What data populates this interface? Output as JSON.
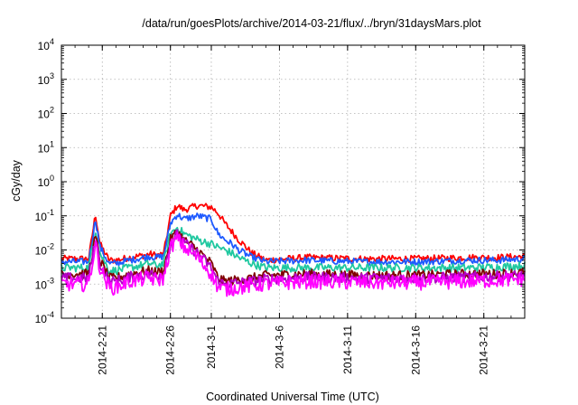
{
  "chart_data": {
    "type": "line",
    "title": "/data/run/goesPlots/archive/2014-03-21/flux/../bryn/31daysMars.plot",
    "xlabel": "Coordinated Universal Time (UTC)",
    "ylabel": "cGy/day",
    "yscale": "log",
    "ylim": [
      0.0001,
      10000
    ],
    "xlim": [
      "2014-02-18",
      "2014-03-24"
    ],
    "grid": true,
    "y_ticks": [
      {
        "value": 0.0001,
        "base": "10",
        "exp": "-4"
      },
      {
        "value": 0.001,
        "base": "10",
        "exp": "-3"
      },
      {
        "value": 0.01,
        "base": "10",
        "exp": "-2"
      },
      {
        "value": 0.1,
        "base": "10",
        "exp": "-1"
      },
      {
        "value": 1,
        "base": "10",
        "exp": "0"
      },
      {
        "value": 10,
        "base": "10",
        "exp": "1"
      },
      {
        "value": 100,
        "base": "10",
        "exp": "2"
      },
      {
        "value": 1000,
        "base": "10",
        "exp": "3"
      },
      {
        "value": 10000,
        "base": "10",
        "exp": "4"
      }
    ],
    "x_ticks": [
      {
        "date": "2014-02-21",
        "label": "2014-2-21"
      },
      {
        "date": "2014-02-26",
        "label": "2014-2-26"
      },
      {
        "date": "2014-03-01",
        "label": "2014-3-1"
      },
      {
        "date": "2014-03-06",
        "label": "2014-3-6"
      },
      {
        "date": "2014-03-11",
        "label": "2014-3-11"
      },
      {
        "date": "2014-03-16",
        "label": "2014-3-16"
      },
      {
        "date": "2014-03-21",
        "label": "2014-3-21"
      }
    ],
    "series": [
      {
        "color": "#ff0000",
        "noise": 0.1,
        "points": [
          [
            "2014-02-18",
            0.0055
          ],
          [
            "2014-02-20",
            0.0055
          ],
          [
            "2014-02-20T12:00",
            0.11
          ],
          [
            "2014-02-20T20:00",
            0.015
          ],
          [
            "2014-02-21T12:00",
            0.005
          ],
          [
            "2014-02-22",
            0.005
          ],
          [
            "2014-02-23",
            0.006
          ],
          [
            "2014-02-24T12:00",
            0.0075
          ],
          [
            "2014-02-25",
            0.007
          ],
          [
            "2014-02-25T12:00",
            0.0075
          ],
          [
            "2014-02-26",
            0.1
          ],
          [
            "2014-02-26T12:00",
            0.2
          ],
          [
            "2014-02-27",
            0.15
          ],
          [
            "2014-02-28",
            0.2
          ],
          [
            "2014-03-01",
            0.18
          ],
          [
            "2014-03-01T12:00",
            0.12
          ],
          [
            "2014-03-02",
            0.06
          ],
          [
            "2014-03-02T12:00",
            0.035
          ],
          [
            "2014-03-03",
            0.02
          ],
          [
            "2014-03-04",
            0.008
          ],
          [
            "2014-03-05",
            0.005
          ],
          [
            "2014-03-08",
            0.006
          ],
          [
            "2014-03-12",
            0.0055
          ],
          [
            "2014-03-16",
            0.0055
          ],
          [
            "2014-03-20",
            0.006
          ],
          [
            "2014-03-22",
            0.006
          ],
          [
            "2014-03-24",
            0.0065
          ]
        ]
      },
      {
        "color": "#1e5aff",
        "noise": 0.1,
        "points": [
          [
            "2014-02-18",
            0.0045
          ],
          [
            "2014-02-20",
            0.0045
          ],
          [
            "2014-02-20T12:00",
            0.08
          ],
          [
            "2014-02-20T20:00",
            0.012
          ],
          [
            "2014-02-21T12:00",
            0.004
          ],
          [
            "2014-02-22",
            0.004
          ],
          [
            "2014-02-23",
            0.005
          ],
          [
            "2014-02-24T12:00",
            0.0065
          ],
          [
            "2014-02-25",
            0.006
          ],
          [
            "2014-02-25T12:00",
            0.0065
          ],
          [
            "2014-02-26",
            0.06
          ],
          [
            "2014-02-26T12:00",
            0.11
          ],
          [
            "2014-02-27",
            0.08
          ],
          [
            "2014-02-28",
            0.1
          ],
          [
            "2014-03-01",
            0.08
          ],
          [
            "2014-03-01T12:00",
            0.03
          ],
          [
            "2014-03-02",
            0.02
          ],
          [
            "2014-03-02T12:00",
            0.015
          ],
          [
            "2014-03-03",
            0.01
          ],
          [
            "2014-03-04",
            0.006
          ],
          [
            "2014-03-05",
            0.0045
          ],
          [
            "2014-03-08",
            0.005
          ],
          [
            "2014-03-12",
            0.0045
          ],
          [
            "2014-03-16",
            0.0045
          ],
          [
            "2014-03-20",
            0.005
          ],
          [
            "2014-03-22",
            0.005
          ],
          [
            "2014-03-24",
            0.0055
          ]
        ]
      },
      {
        "color": "#20c8a0",
        "noise": 0.12,
        "points": [
          [
            "2014-02-18",
            0.003
          ],
          [
            "2014-02-20",
            0.003
          ],
          [
            "2014-02-20T12:00",
            0.04
          ],
          [
            "2014-02-20T20:00",
            0.008
          ],
          [
            "2014-02-21T12:00",
            0.0025
          ],
          [
            "2014-02-22",
            0.0025
          ],
          [
            "2014-02-23",
            0.003
          ],
          [
            "2014-02-24T12:00",
            0.004
          ],
          [
            "2014-02-25",
            0.0035
          ],
          [
            "2014-02-25T12:00",
            0.004
          ],
          [
            "2014-02-26",
            0.03
          ],
          [
            "2014-02-26T12:00",
            0.045
          ],
          [
            "2014-02-27",
            0.03
          ],
          [
            "2014-02-28",
            0.02
          ],
          [
            "2014-03-01",
            0.015
          ],
          [
            "2014-03-01T12:00",
            0.012
          ],
          [
            "2014-03-02",
            0.01
          ],
          [
            "2014-03-02T12:00",
            0.008
          ],
          [
            "2014-03-03",
            0.006
          ],
          [
            "2014-03-04",
            0.004
          ],
          [
            "2014-03-05",
            0.003
          ],
          [
            "2014-03-08",
            0.003
          ],
          [
            "2014-03-12",
            0.003
          ],
          [
            "2014-03-16",
            0.003
          ],
          [
            "2014-03-20",
            0.003
          ],
          [
            "2014-03-22",
            0.0032
          ],
          [
            "2014-03-24",
            0.0035
          ]
        ]
      },
      {
        "color": "#800000",
        "noise": 0.14,
        "points": [
          [
            "2014-02-18",
            0.002
          ],
          [
            "2014-02-20",
            0.002
          ],
          [
            "2014-02-20T12:00",
            0.025
          ],
          [
            "2014-02-20T20:00",
            0.005
          ],
          [
            "2014-02-21T12:00",
            0.0015
          ],
          [
            "2014-02-22",
            0.0015
          ],
          [
            "2014-02-23",
            0.002
          ],
          [
            "2014-02-24T12:00",
            0.0025
          ],
          [
            "2014-02-25",
            0.0022
          ],
          [
            "2014-02-25T12:00",
            0.0025
          ],
          [
            "2014-02-26",
            0.02
          ],
          [
            "2014-02-26T12:00",
            0.035
          ],
          [
            "2014-02-27",
            0.02
          ],
          [
            "2014-02-28",
            0.01
          ],
          [
            "2014-03-01",
            0.004
          ],
          [
            "2014-03-01T12:00",
            0.0015
          ],
          [
            "2014-03-02",
            0.0012
          ],
          [
            "2014-03-04",
            0.0015
          ],
          [
            "2014-03-05",
            0.0018
          ],
          [
            "2014-03-08",
            0.002
          ],
          [
            "2014-03-12",
            0.0018
          ],
          [
            "2014-03-16",
            0.0018
          ],
          [
            "2014-03-20",
            0.002
          ],
          [
            "2014-03-22",
            0.002
          ],
          [
            "2014-03-24",
            0.0022
          ]
        ]
      },
      {
        "color": "#b400c8",
        "noise": 0.16,
        "points": [
          [
            "2014-02-18",
            0.0015
          ],
          [
            "2014-02-20",
            0.0015
          ],
          [
            "2014-02-20T12:00",
            0.02
          ],
          [
            "2014-02-20T20:00",
            0.004
          ],
          [
            "2014-02-21T12:00",
            0.0012
          ],
          [
            "2014-02-22",
            0.0012
          ],
          [
            "2014-02-23",
            0.0016
          ],
          [
            "2014-02-24T12:00",
            0.002
          ],
          [
            "2014-02-25",
            0.0018
          ],
          [
            "2014-02-25T12:00",
            0.002
          ],
          [
            "2014-02-26",
            0.015
          ],
          [
            "2014-02-26T12:00",
            0.028
          ],
          [
            "2014-02-27",
            0.016
          ],
          [
            "2014-02-28",
            0.008
          ],
          [
            "2014-03-01",
            0.003
          ],
          [
            "2014-03-01T12:00",
            0.0012
          ],
          [
            "2014-03-02",
            0.001
          ],
          [
            "2014-03-04",
            0.0012
          ],
          [
            "2014-03-05",
            0.0014
          ],
          [
            "2014-03-08",
            0.0016
          ],
          [
            "2014-03-12",
            0.0015
          ],
          [
            "2014-03-16",
            0.0015
          ],
          [
            "2014-03-20",
            0.0016
          ],
          [
            "2014-03-22",
            0.0017
          ],
          [
            "2014-03-24",
            0.0018
          ]
        ]
      },
      {
        "color": "#ff00ff",
        "noise": 0.22,
        "points": [
          [
            "2014-02-18",
            0.001
          ],
          [
            "2014-02-20",
            0.001
          ],
          [
            "2014-02-20T12:00",
            0.015
          ],
          [
            "2014-02-20T20:00",
            0.003
          ],
          [
            "2014-02-21T12:00",
            0.0008
          ],
          [
            "2014-02-22",
            0.0008
          ],
          [
            "2014-02-23",
            0.0012
          ],
          [
            "2014-02-24T12:00",
            0.0015
          ],
          [
            "2014-02-25",
            0.0013
          ],
          [
            "2014-02-25T12:00",
            0.0015
          ],
          [
            "2014-02-26",
            0.012
          ],
          [
            "2014-02-26T12:00",
            0.022
          ],
          [
            "2014-02-27",
            0.012
          ],
          [
            "2014-02-28",
            0.006
          ],
          [
            "2014-03-01",
            0.002
          ],
          [
            "2014-03-01T12:00",
            0.0008
          ],
          [
            "2014-03-02",
            0.0007
          ],
          [
            "2014-03-04",
            0.0009
          ],
          [
            "2014-03-05",
            0.001
          ],
          [
            "2014-03-08",
            0.0012
          ],
          [
            "2014-03-12",
            0.0011
          ],
          [
            "2014-03-16",
            0.0011
          ],
          [
            "2014-03-20",
            0.0012
          ],
          [
            "2014-03-22",
            0.0013
          ],
          [
            "2014-03-24",
            0.0014
          ]
        ]
      }
    ]
  }
}
